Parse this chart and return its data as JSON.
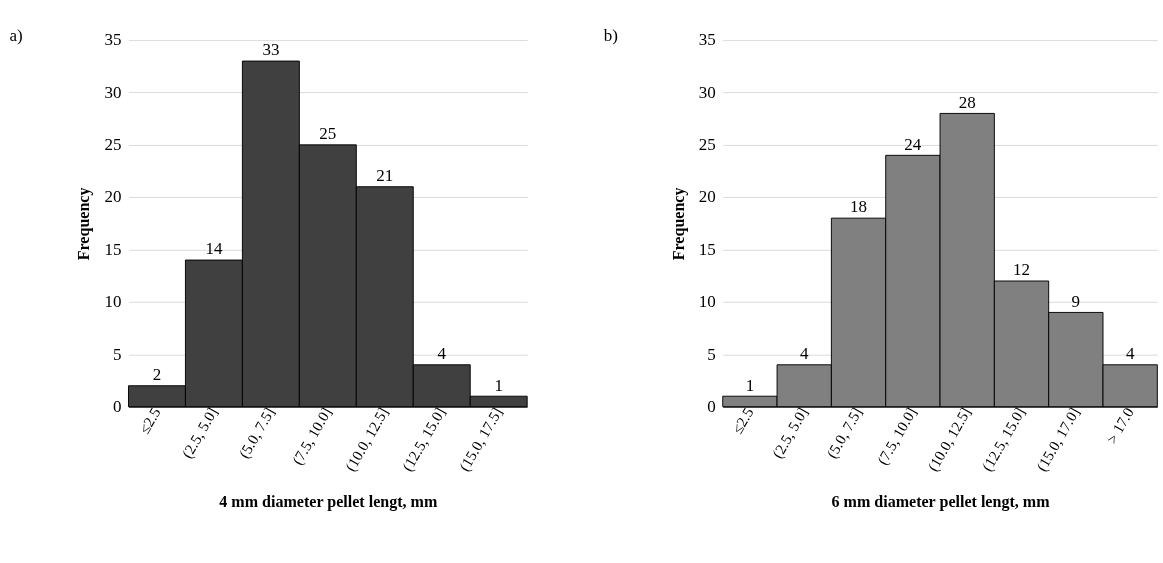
{
  "chart_data": [
    {
      "type": "bar",
      "title": "a)",
      "xlabel": "4 mm diameter pellet lengt, mm",
      "ylabel": "Frequency",
      "categories": [
        "≤2.5",
        "(2.5, 5.0]",
        "(5.0, 7.5]",
        "(7.5, 10.0]",
        "(10.0, 12.5]",
        "(12.5, 15.0]",
        "(15.0, 17.5]"
      ],
      "values": [
        2,
        14,
        33,
        25,
        21,
        4,
        1
      ],
      "color": "#404040",
      "ylim": [
        0,
        35
      ],
      "yticks": [
        0,
        5,
        10,
        15,
        20,
        25,
        30,
        35
      ],
      "grid": "y",
      "data_labels": true
    },
    {
      "type": "bar",
      "title": "b)",
      "xlabel": "6 mm diameter pellet lengt, mm",
      "ylabel": "Frequency",
      "categories": [
        "≤2.5",
        "(2.5, 5.0]",
        "(5.0, 7.5]",
        "(7.5, 10.0]",
        "(10.0, 12.5]",
        "(12.5, 15.0]",
        "(15.0, 17.0]",
        "> 17.0"
      ],
      "values": [
        1,
        4,
        18,
        24,
        28,
        12,
        9,
        4
      ],
      "color": "#808080",
      "ylim": [
        0,
        35
      ],
      "yticks": [
        0,
        5,
        10,
        15,
        20,
        25,
        30,
        35
      ],
      "grid": "y",
      "data_labels": true
    }
  ]
}
